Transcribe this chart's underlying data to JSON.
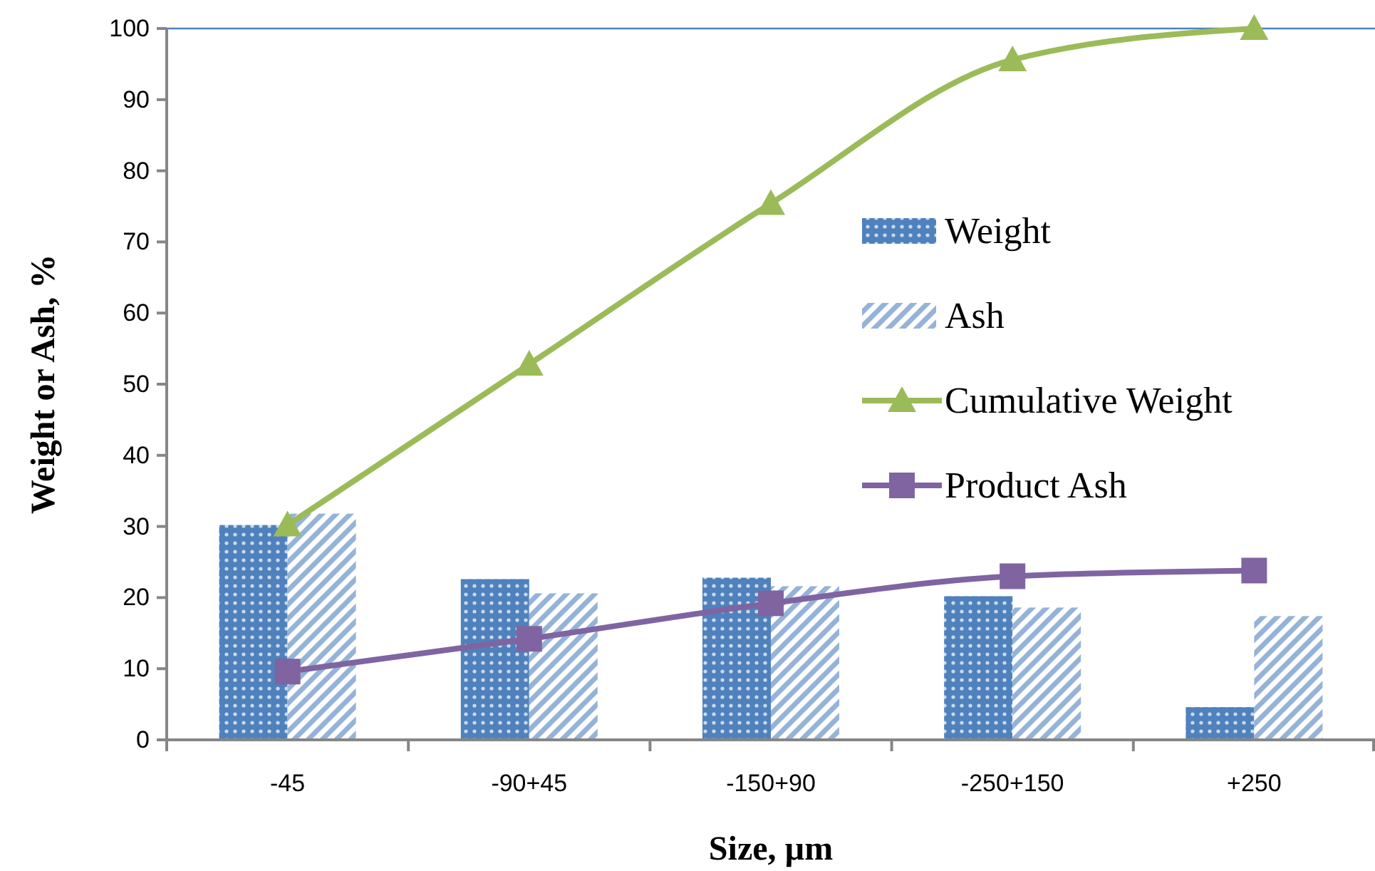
{
  "chart_data": {
    "type": "bar",
    "xlabel": "Size, µm",
    "ylabel": "Weight or Ash, %",
    "categories": [
      "-45",
      "-90+45",
      "-150+90",
      "-250+150",
      "+250"
    ],
    "ylim": [
      0,
      100
    ],
    "yticks": [
      0,
      10,
      20,
      30,
      40,
      50,
      60,
      70,
      80,
      90,
      100
    ],
    "grid": false,
    "legend": "right",
    "series": [
      {
        "name": "Weight",
        "color": "#4f81bd",
        "values": [
          30.2,
          22.6,
          22.8,
          20.2,
          4.6
        ]
      },
      {
        "name": "Ash",
        "color": "#95b3d7",
        "values": [
          31.8,
          20.6,
          21.6,
          18.6,
          17.4
        ]
      },
      {
        "name": "Cumulative Weight",
        "type": "line",
        "color": "#9bbb59",
        "marker": "triangle",
        "values": [
          30.2,
          52.8,
          75.4,
          95.6,
          100
        ]
      },
      {
        "name": "Product Ash",
        "type": "line",
        "color": "#8064a2",
        "marker": "square",
        "values": [
          9.6,
          14.2,
          19.2,
          23.0,
          23.8
        ]
      }
    ]
  }
}
